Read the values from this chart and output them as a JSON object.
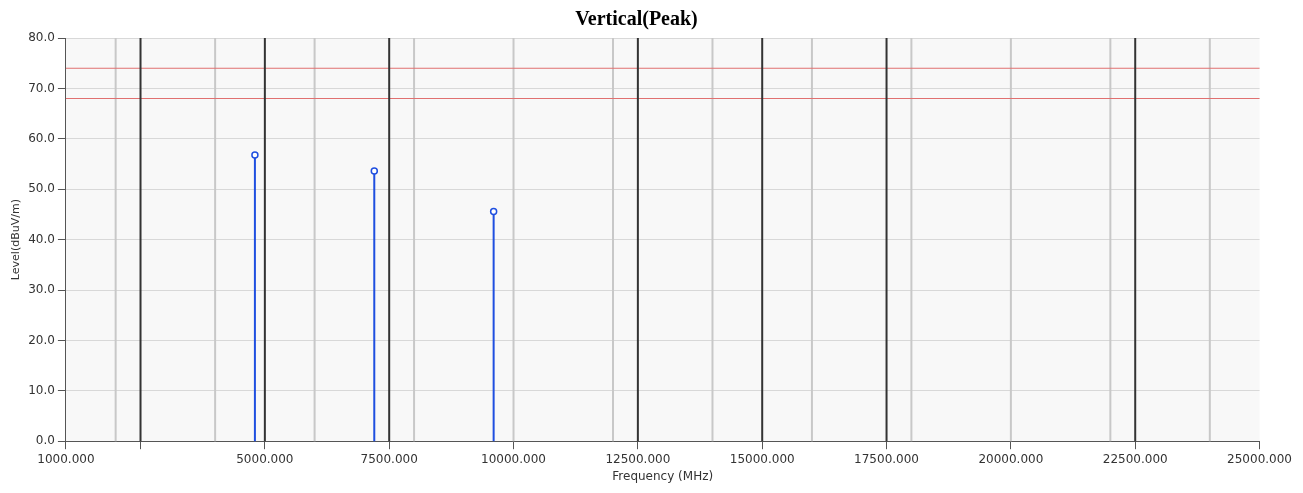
{
  "chart_data": {
    "type": "lollipop",
    "title": "Vertical(Peak)",
    "xlabel": "Frequency (MHz)",
    "ylabel": "Level(dBuV/m)",
    "x": [
      4800,
      7200,
      9600
    ],
    "series": [
      {
        "color": "#1f4fe0",
        "values": [
          56.8,
          53.6,
          45.6
        ]
      }
    ],
    "marker": "circle",
    "xlim": [
      1000,
      25000
    ],
    "xticks": [
      {
        "value": 1000,
        "label": "1000.000"
      },
      {
        "value": 2500,
        "label": null
      },
      {
        "value": 5000,
        "label": "5000.000"
      },
      {
        "value": 7500,
        "label": "7500.000"
      },
      {
        "value": 10000,
        "label": "10000.000"
      },
      {
        "value": 12500,
        "label": "12500.000"
      },
      {
        "value": 15000,
        "label": "15000.000"
      },
      {
        "value": 17500,
        "label": "17500.000"
      },
      {
        "value": 20000,
        "label": "20000.000"
      },
      {
        "value": 22500,
        "label": "22500.000"
      },
      {
        "value": 25000,
        "label": "25000.000"
      }
    ],
    "ylim": [
      0,
      80
    ],
    "yticks": [
      {
        "value": 0,
        "label": "0.0"
      },
      {
        "value": 10,
        "label": "10.0"
      },
      {
        "value": 20,
        "label": "20.0"
      },
      {
        "value": 30,
        "label": "30.0"
      },
      {
        "value": 40,
        "label": "40.0"
      },
      {
        "value": 50,
        "label": "50.0"
      },
      {
        "value": 60,
        "label": "60.0"
      },
      {
        "value": 70,
        "label": "70.0"
      },
      {
        "value": 80,
        "label": "80.0"
      }
    ],
    "grid": "y",
    "ref_lines": [
      {
        "axis": "x",
        "value": 2000,
        "color": "#c8c8c8"
      },
      {
        "axis": "x",
        "value": 4000,
        "color": "#c8c8c8"
      },
      {
        "axis": "x",
        "value": 6000,
        "color": "#c8c8c8"
      },
      {
        "axis": "x",
        "value": 8000,
        "color": "#c8c8c8"
      },
      {
        "axis": "x",
        "value": 10000,
        "color": "#c8c8c8"
      },
      {
        "axis": "x",
        "value": 12000,
        "color": "#c8c8c8"
      },
      {
        "axis": "x",
        "value": 14000,
        "color": "#c8c8c8"
      },
      {
        "axis": "x",
        "value": 16000,
        "color": "#c8c8c8"
      },
      {
        "axis": "x",
        "value": 18000,
        "color": "#c8c8c8"
      },
      {
        "axis": "x",
        "value": 20000,
        "color": "#c8c8c8"
      },
      {
        "axis": "x",
        "value": 22000,
        "color": "#c8c8c8"
      },
      {
        "axis": "x",
        "value": 24000,
        "color": "#c8c8c8"
      },
      {
        "axis": "y",
        "value": 74,
        "color": "#e07070"
      },
      {
        "axis": "y",
        "value": 68,
        "color": "#e07070"
      },
      {
        "axis": "x",
        "value": 2500,
        "color": "#333333"
      },
      {
        "axis": "x",
        "value": 5000,
        "color": "#333333"
      },
      {
        "axis": "x",
        "value": 7500,
        "color": "#333333"
      },
      {
        "axis": "x",
        "value": 12500,
        "color": "#333333"
      },
      {
        "axis": "x",
        "value": 15000,
        "color": "#333333"
      },
      {
        "axis": "x",
        "value": 17500,
        "color": "#333333"
      },
      {
        "axis": "x",
        "value": 22500,
        "color": "#333333"
      }
    ]
  }
}
